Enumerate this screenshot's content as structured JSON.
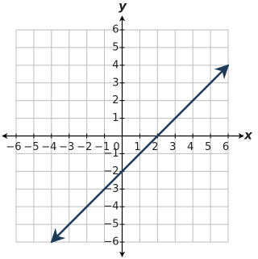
{
  "chart_data": {
    "type": "line",
    "x_label": "x",
    "y_label": "y",
    "xlim": [
      -6,
      6
    ],
    "ylim": [
      -6,
      6
    ],
    "xticks": [
      {
        "value": -6,
        "label": "−6"
      },
      {
        "value": -5,
        "label": "−5"
      },
      {
        "value": -4,
        "label": "−4"
      },
      {
        "value": -3,
        "label": "−3"
      },
      {
        "value": -2,
        "label": "−2"
      },
      {
        "value": -1,
        "label": "−1"
      },
      0,
      1,
      2,
      3,
      4,
      5,
      6
    ],
    "yticks": [
      {
        "value": -6,
        "label": "−6"
      },
      {
        "value": -5,
        "label": "−5"
      },
      {
        "value": -4,
        "label": "−4"
      },
      {
        "value": -3,
        "label": "−3"
      },
      {
        "value": -2,
        "label": "−2"
      },
      {
        "value": -1,
        "label": "−1"
      },
      0,
      1,
      2,
      3,
      4,
      5,
      6
    ],
    "grid": true,
    "series": [
      {
        "x": [
          -4,
          6
        ],
        "values": [
          -6,
          4
        ],
        "color": "#1d3a57"
      }
    ]
  }
}
